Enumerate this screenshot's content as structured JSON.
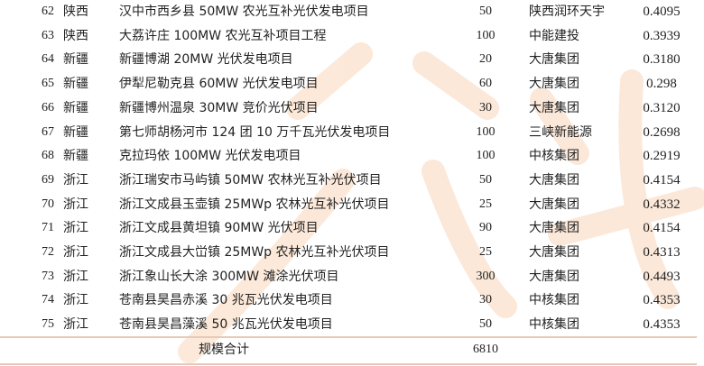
{
  "table": {
    "rows": [
      {
        "index": "62",
        "province": "陕西",
        "project": "汉中市西乡县 50MW 农光互补光伏发电项目",
        "capacity": "50",
        "company": "陕西润环天宇",
        "price": "0.4095"
      },
      {
        "index": "63",
        "province": "陕西",
        "project": "大荔许庄 100MW 农光互补项目工程",
        "capacity": "100",
        "company": "中能建投",
        "price": "0.3939"
      },
      {
        "index": "64",
        "province": "新疆",
        "project": "新疆博湖 20MW 光伏发电项目",
        "capacity": "20",
        "company": "大唐集团",
        "price": "0.3180"
      },
      {
        "index": "65",
        "province": "新疆",
        "project": "伊犁尼勒克县 60MW 光伏发电项目",
        "capacity": "60",
        "company": "大唐集团",
        "price": "0.298"
      },
      {
        "index": "66",
        "province": "新疆",
        "project": "新疆博州温泉 30MW 竞价光伏项目",
        "capacity": "30",
        "company": "大唐集团",
        "price": "0.3120"
      },
      {
        "index": "67",
        "province": "新疆",
        "project": "第七师胡杨河市 124 团 10 万千瓦光伏发电项目",
        "capacity": "100",
        "company": "三峡新能源",
        "price": "0.2698"
      },
      {
        "index": "68",
        "province": "新疆",
        "project": "克拉玛依 100MW 光伏发电项目",
        "capacity": "100",
        "company": "中核集团",
        "price": "0.2919"
      },
      {
        "index": "69",
        "province": "浙江",
        "project": "浙江瑞安市马屿镇 50MW 农林光互补光伏项目",
        "capacity": "50",
        "company": "大唐集团",
        "price": "0.4154"
      },
      {
        "index": "70",
        "province": "浙江",
        "project": "浙江文成县玉壶镇 25MWp 农林光互补光伏项目",
        "capacity": "25",
        "company": "大唐集团",
        "price": "0.4332"
      },
      {
        "index": "71",
        "province": "浙江",
        "project": "浙江文成县黄坦镇 90MW 光伏项目",
        "capacity": "90",
        "company": "大唐集团",
        "price": "0.4154"
      },
      {
        "index": "72",
        "province": "浙江",
        "project": "浙江文成县大峃镇 25MWp 农林光互补光伏项目",
        "capacity": "25",
        "company": "大唐集团",
        "price": "0.4313"
      },
      {
        "index": "73",
        "province": "浙江",
        "project": "浙江象山长大涂 300MW 滩涂光伏项目",
        "capacity": "300",
        "company": "大唐集团",
        "price": "0.4493"
      },
      {
        "index": "74",
        "province": "浙江",
        "project": "苍南县昊昌赤溪 30 兆瓦光伏发电项目",
        "capacity": "30",
        "company": "中核集团",
        "price": "0.4353"
      },
      {
        "index": "75",
        "province": "浙江",
        "project": "苍南县昊昌藻溪 50 兆瓦光伏发电项目",
        "capacity": "50",
        "company": "中核集团",
        "price": "0.4353"
      }
    ],
    "total_label": "规模合计",
    "total_value": "6810"
  },
  "colors": {
    "watermark": "#f5b98a",
    "rule": "#e8c9b8"
  }
}
